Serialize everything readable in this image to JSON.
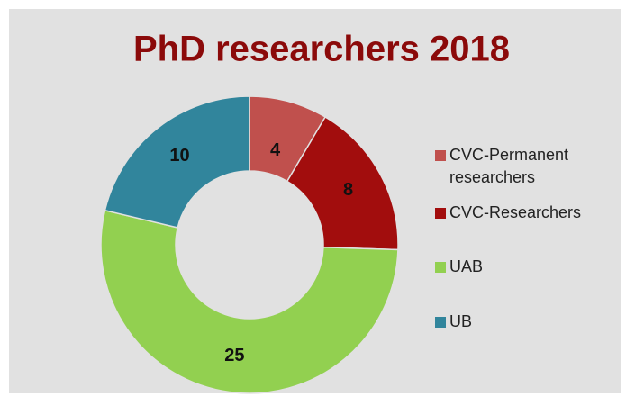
{
  "chart_data": {
    "type": "donut",
    "title": "PhD researchers 2018",
    "categories": [
      "CVC-Permanent researchers",
      "CVC-Researchers",
      "UAB",
      "UB"
    ],
    "values": [
      4,
      8,
      25,
      10
    ],
    "colors": [
      "#c0504d",
      "#a20d0d",
      "#92d050",
      "#31859c"
    ],
    "legend": "right"
  }
}
